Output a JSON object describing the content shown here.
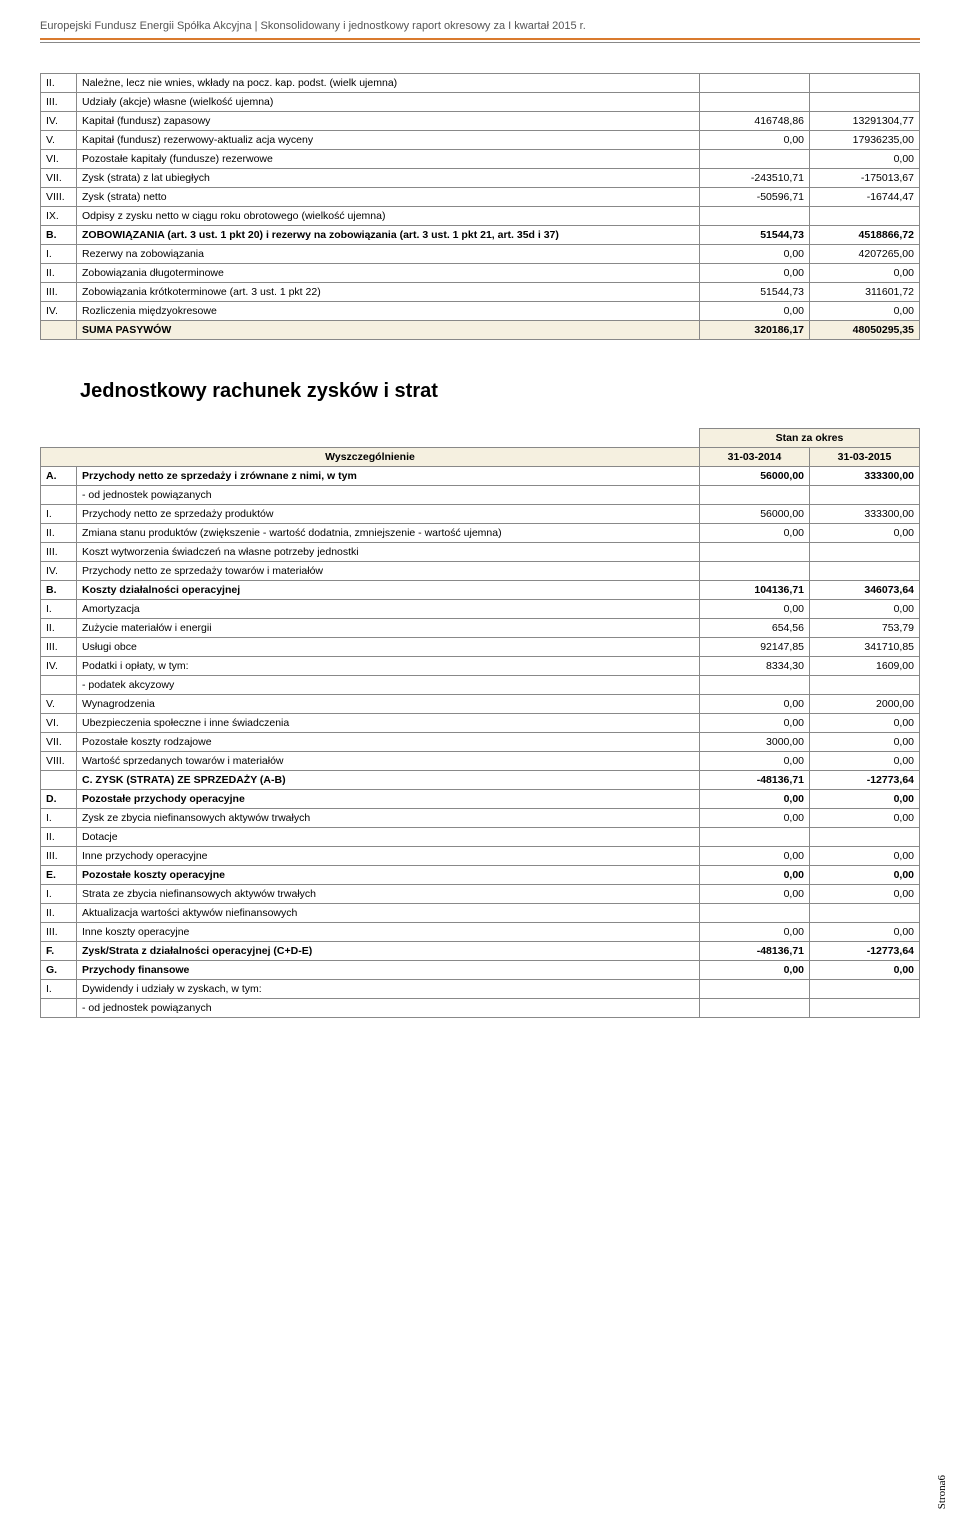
{
  "header": "Europejski Fundusz Energii Spółka Akcyjna | Skonsolidowany i jednostkowy  raport okresowy za I kwartał 2015 r.",
  "table1": {
    "rows": [
      {
        "n": "II.",
        "label": "Należne, lecz nie wnies, wkłady na pocz. kap. podst. (wielk ujemna)",
        "v1": "",
        "v2": ""
      },
      {
        "n": "III.",
        "label": "Udziały (akcje) własne (wielkość ujemna)",
        "v1": "",
        "v2": ""
      },
      {
        "n": "IV.",
        "label": "Kapitał (fundusz) zapasowy",
        "v1": "416748,86",
        "v2": "13291304,77"
      },
      {
        "n": "V.",
        "label": "Kapitał (fundusz) rezerwowy-aktualiz acja wyceny",
        "v1": "0,00",
        "v2": "17936235,00"
      },
      {
        "n": "VI.",
        "label": "Pozostałe kapitały (fundusze) rezerwowe",
        "v1": "",
        "v2": "0,00"
      },
      {
        "n": "VII.",
        "label": "Zysk (strata) z lat ubiegłych",
        "v1": "-243510,71",
        "v2": "-175013,67"
      },
      {
        "n": "VIII.",
        "label": "Zysk (strata) netto",
        "v1": "-50596,71",
        "v2": "-16744,47"
      },
      {
        "n": "IX.",
        "label": "Odpisy z zysku netto w ciągu roku obrotowego (wielkość ujemna)",
        "v1": "",
        "v2": ""
      },
      {
        "n": "B.",
        "label": "ZOBOWIĄZANIA (art. 3 ust. 1 pkt 20) i rezerwy na zobowiązania (art. 3 ust. 1 pkt 21, art. 35d i 37)",
        "v1": "51544,73",
        "v2": "4518866,72",
        "bold": true
      },
      {
        "n": "I.",
        "label": "Rezerwy na zobowiązania",
        "v1": "0,00",
        "v2": "4207265,00"
      },
      {
        "n": "II.",
        "label": "Zobowiązania długoterminowe",
        "v1": "0,00",
        "v2": "0,00"
      },
      {
        "n": "III.",
        "label": "Zobowiązania krótkoterminowe (art. 3 ust. 1 pkt 22)",
        "v1": "51544,73",
        "v2": "311601,72"
      },
      {
        "n": "IV.",
        "label": "Rozliczenia międzyokresowe",
        "v1": "0,00",
        "v2": "0,00"
      }
    ],
    "sum": {
      "label": "SUMA PASYWÓW",
      "v1": "320186,17",
      "v2": "48050295,35"
    }
  },
  "section_title": "Jednostkowy rachunek zysków i strat",
  "table2": {
    "period_label": "Stan za okres",
    "col_label": "Wyszczególnienie",
    "col1": "31-03-2014",
    "col2": "31-03-2015",
    "rows": [
      {
        "n": "A.",
        "label": "Przychody netto ze sprzedaży i zrównane z nimi, w tym",
        "v1": "56000,00",
        "v2": "333300,00",
        "bold": true
      },
      {
        "n": "",
        "label": " - od jednostek powiązanych",
        "v1": "",
        "v2": ""
      },
      {
        "n": "I.",
        "label": "Przychody netto ze sprzedaży produktów",
        "v1": "56000,00",
        "v2": "333300,00"
      },
      {
        "n": "II.",
        "label": "Zmiana stanu produktów (zwiększenie - wartość dodatnia, zmniejszenie - wartość ujemna)",
        "v1": "0,00",
        "v2": "0,00"
      },
      {
        "n": "III.",
        "label": "Koszt wytworzenia świadczeń na własne potrzeby jednostki",
        "v1": "",
        "v2": ""
      },
      {
        "n": "IV.",
        "label": "Przychody netto ze sprzedaży towarów i materiałów",
        "v1": "",
        "v2": ""
      },
      {
        "n": "B.",
        "label": "Koszty działalności operacyjnej",
        "v1": "104136,71",
        "v2": "346073,64",
        "bold": true
      },
      {
        "n": "I.",
        "label": "Amortyzacja",
        "v1": "0,00",
        "v2": "0,00"
      },
      {
        "n": "II.",
        "label": "Zużycie materiałów i energii",
        "v1": "654,56",
        "v2": "753,79"
      },
      {
        "n": "III.",
        "label": "Usługi obce",
        "v1": "92147,85",
        "v2": "341710,85"
      },
      {
        "n": "IV.",
        "label": "Podatki i opłaty, w tym:",
        "v1": "8334,30",
        "v2": "1609,00"
      },
      {
        "n": "",
        "label": " - podatek akcyzowy",
        "v1": "",
        "v2": ""
      },
      {
        "n": "V.",
        "label": "Wynagrodzenia",
        "v1": "0,00",
        "v2": "2000,00"
      },
      {
        "n": "VI.",
        "label": "Ubezpieczenia społeczne i inne świadczenia",
        "v1": "0,00",
        "v2": "0,00"
      },
      {
        "n": "VII.",
        "label": "Pozostałe koszty rodzajowe",
        "v1": "3000,00",
        "v2": "0,00"
      },
      {
        "n": "VIII.",
        "label": "Wartość sprzedanych towarów i materiałów",
        "v1": "0,00",
        "v2": "0,00"
      },
      {
        "n": "",
        "label": "C. ZYSK (STRATA) ZE SPRZEDAŻY (A-B)",
        "v1": "-48136,71",
        "v2": "-12773,64",
        "bold": true
      },
      {
        "n": "D.",
        "label": "Pozostałe przychody operacyjne",
        "v1": "0,00",
        "v2": "0,00",
        "bold": true
      },
      {
        "n": "I.",
        "label": "Zysk ze zbycia niefinansowych aktywów trwałych",
        "v1": "0,00",
        "v2": "0,00"
      },
      {
        "n": "II.",
        "label": "Dotacje",
        "v1": "",
        "v2": ""
      },
      {
        "n": "III.",
        "label": "Inne przychody operacyjne",
        "v1": "0,00",
        "v2": "0,00"
      },
      {
        "n": "E.",
        "label": "Pozostałe koszty operacyjne",
        "v1": "0,00",
        "v2": "0,00",
        "bold": true
      },
      {
        "n": "I.",
        "label": "Strata ze zbycia niefinansowych aktywów trwałych",
        "v1": "0,00",
        "v2": "0,00"
      },
      {
        "n": "II.",
        "label": "Aktualizacja wartości aktywów niefinansowych",
        "v1": "",
        "v2": ""
      },
      {
        "n": "III.",
        "label": "Inne koszty operacyjne",
        "v1": "0,00",
        "v2": "0,00"
      },
      {
        "n": "F.",
        "label": "Zysk/Strata z działalności operacyjnej (C+D-E)",
        "v1": "-48136,71",
        "v2": "-12773,64",
        "bold": true
      },
      {
        "n": "G.",
        "label": "Przychody finansowe",
        "v1": "0,00",
        "v2": "0,00",
        "bold": true
      },
      {
        "n": "I.",
        "label": "Dywidendy i udziały w zyskach, w tym:",
        "v1": "",
        "v2": ""
      },
      {
        "n": "",
        "label": " - od jednostek powiązanych",
        "v1": "",
        "v2": ""
      }
    ]
  },
  "page_label": {
    "text": "Strona",
    "num": "6"
  }
}
